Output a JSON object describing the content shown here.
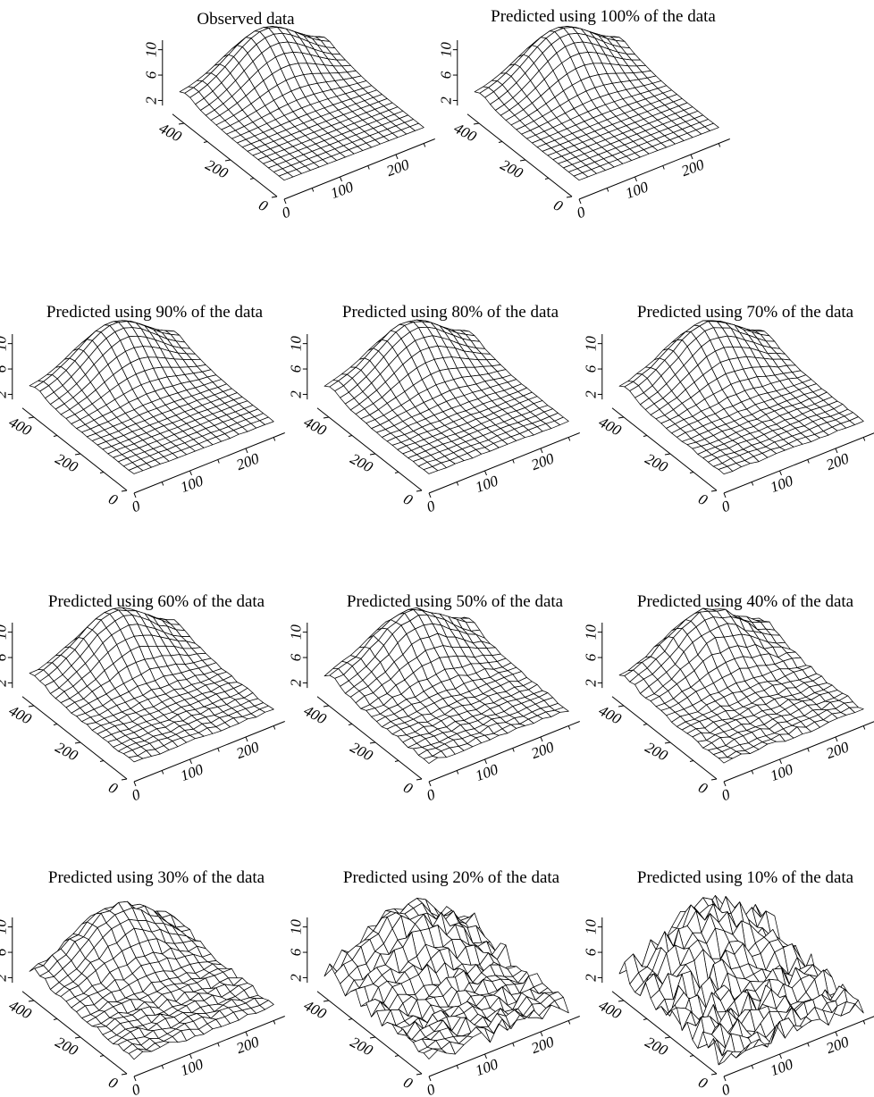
{
  "chart_data": {
    "type": "surface",
    "x_ticks": [
      "0",
      "100",
      "200"
    ],
    "y_ticks": [
      "0",
      "200",
      "400"
    ],
    "z_ticks": [
      "2",
      "6",
      "10"
    ],
    "xlim": [
      0,
      270
    ],
    "ylim": [
      0,
      450
    ],
    "zlim": [
      0,
      12
    ],
    "panels": [
      {
        "title": "Observed data",
        "noise": 0
      },
      {
        "title": "Predicted using 100% of the data",
        "noise": 0
      },
      {
        "title": "Predicted using 90% of the data",
        "noise": 0.05
      },
      {
        "title": "Predicted using 80% of the data",
        "noise": 0.08
      },
      {
        "title": "Predicted using 70% of the data",
        "noise": 0.12
      },
      {
        "title": "Predicted using 60% of the data",
        "noise": 0.18
      },
      {
        "title": "Predicted using 50% of the data",
        "noise": 0.25
      },
      {
        "title": "Predicted using 40% of the data",
        "noise": 0.3
      },
      {
        "title": "Predicted using 30% of the data",
        "noise": 0.45
      },
      {
        "title": "Predicted using 20% of the data",
        "noise": 1.2
      },
      {
        "title": "Predicted using 10% of the data",
        "noise": 2.0
      }
    ]
  }
}
